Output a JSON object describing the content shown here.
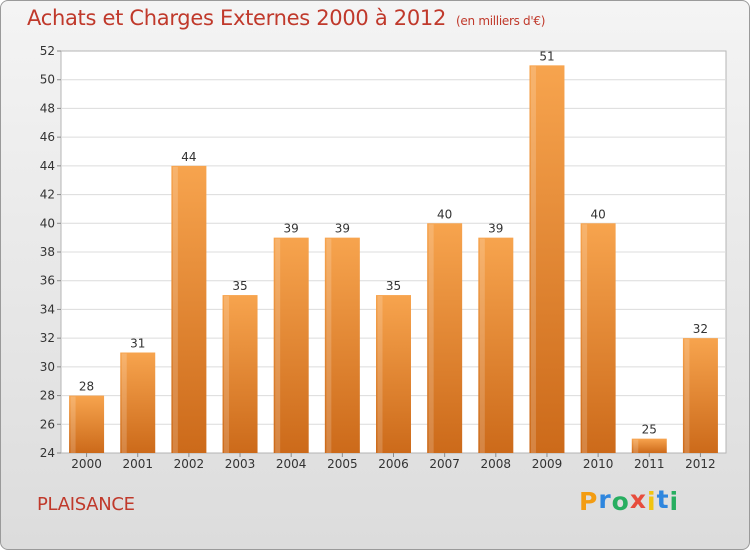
{
  "chart_data": {
    "type": "bar",
    "title": "Achats et Charges Externes 2000 à 2012",
    "subtitle": "(en milliers d'€)",
    "categories": [
      "2000",
      "2001",
      "2002",
      "2003",
      "2004",
      "2005",
      "2006",
      "2007",
      "2008",
      "2009",
      "2010",
      "2011",
      "2012"
    ],
    "values": [
      28,
      31,
      44,
      35,
      39,
      39,
      35,
      40,
      39,
      51,
      40,
      25,
      32
    ],
    "ylim": [
      24,
      52
    ],
    "yticks": [
      24,
      26,
      28,
      30,
      32,
      34,
      36,
      38,
      40,
      42,
      44,
      46,
      48,
      50,
      52
    ],
    "grid": true,
    "colors": {
      "bar_top": "#f7a44e",
      "bar_bottom": "#cc6a1a",
      "title": "#c0392b"
    }
  },
  "footer": {
    "location": "PLAISANCE",
    "logo": {
      "letters": [
        "P",
        "r",
        "o",
        "x",
        "i",
        "t",
        "i"
      ],
      "colors": [
        "#f39c12",
        "#2e86de",
        "#27ae60",
        "#e74c3c",
        "#f1c40f",
        "#2e86de",
        "#27ae60"
      ]
    }
  }
}
